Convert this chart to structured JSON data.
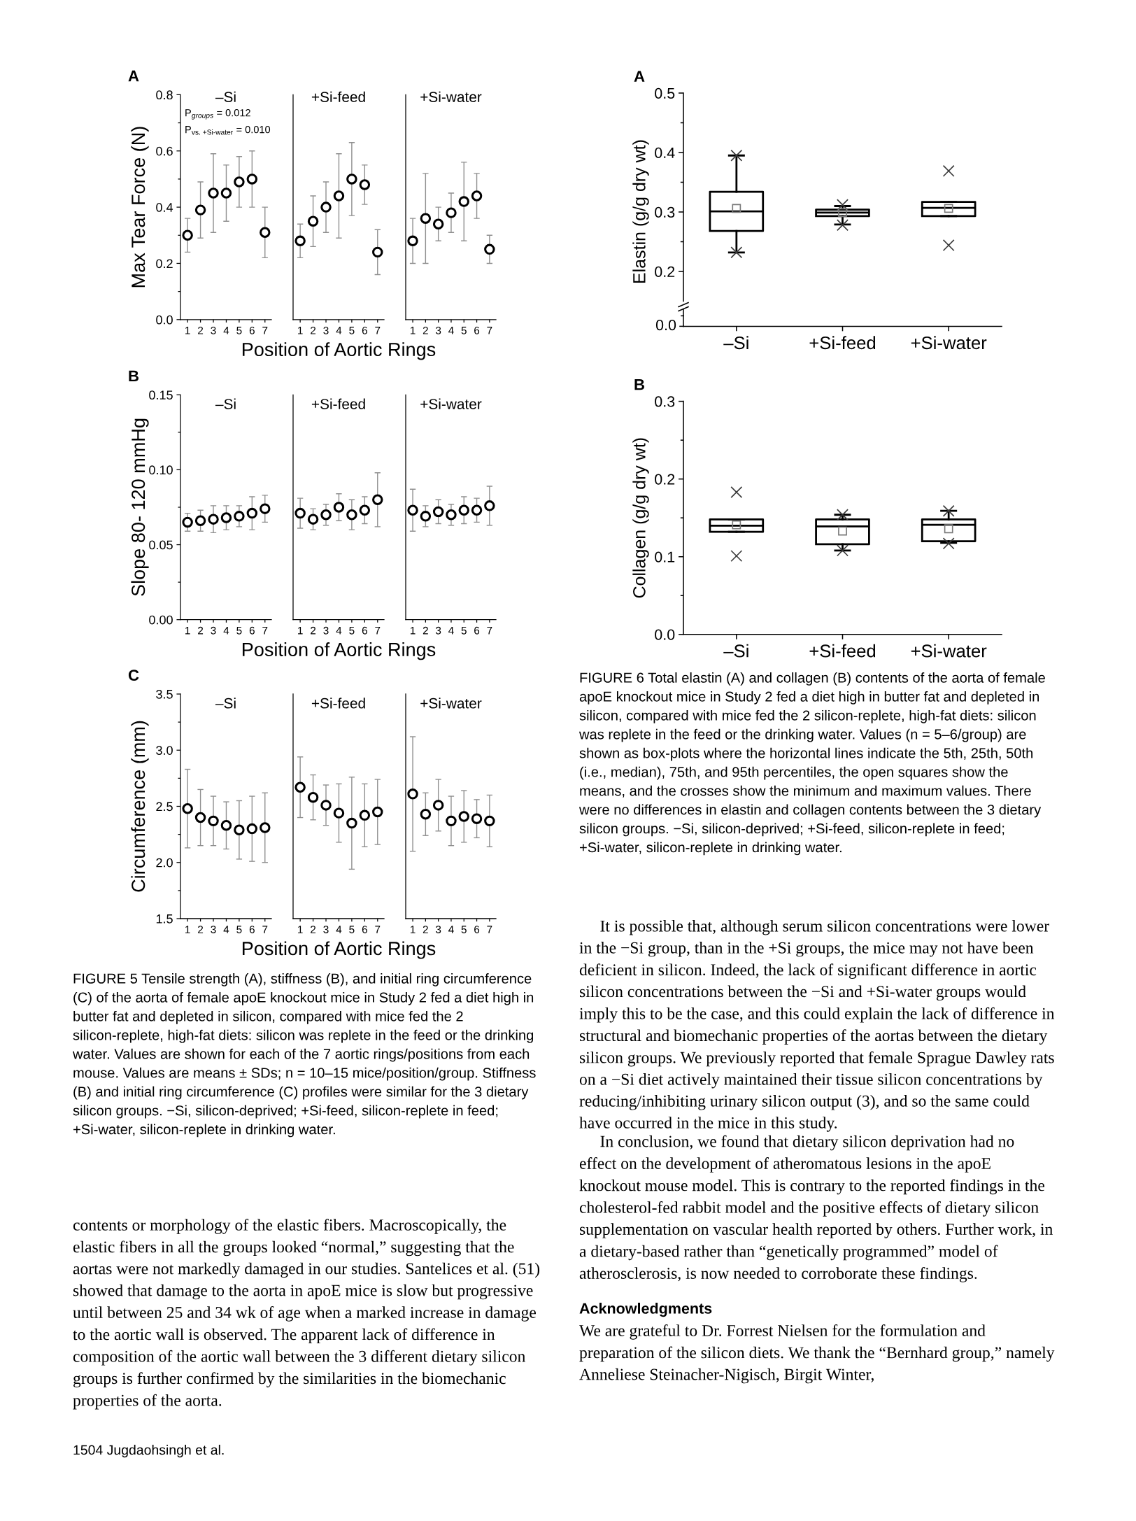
{
  "chart_data": [
    {
      "type": "scatter",
      "title": "–Si",
      "annotations": [
        "A",
        "P$_{groups}$ = 0.012",
        "P$_{vs. +Si-water}$ = 0.010"
      ],
      "ylabel": "Max Tear Force (N)",
      "categories": [
        "1",
        "2",
        "3",
        "4",
        "5",
        "6",
        "7"
      ],
      "series": [
        {
          "color": "#000000",
          "values": [
            0.3,
            0.39,
            0.45,
            0.45,
            0.49,
            0.5,
            0.31
          ],
          "errors": [
            0.06,
            0.1,
            0.14,
            0.1,
            0.09,
            0.1,
            0.09
          ]
        }
      ],
      "ylim": [
        0,
        0.8
      ],
      "yticks": [
        {
          "value": 0,
          "label": "0.0"
        },
        {
          "value": 0.1,
          "label": null
        },
        0.2,
        {
          "value": 0.3,
          "label": null
        },
        0.4,
        {
          "value": 0.5,
          "label": null
        },
        0.6,
        {
          "value": 0.7,
          "label": null
        },
        0.8
      ],
      "marker": "circle"
    },
    {
      "type": "scatter",
      "title": "+Si-feed",
      "xlabel": "Position of Aortic Rings",
      "categories": [
        "1",
        "2",
        "3",
        "4",
        "5",
        "6",
        "7"
      ],
      "series": [
        {
          "color": "#000000",
          "values": [
            0.28,
            0.35,
            0.4,
            0.44,
            0.5,
            0.48,
            0.24
          ],
          "errors": [
            0.06,
            0.09,
            0.09,
            0.15,
            0.13,
            0.07,
            0.08
          ]
        }
      ],
      "ylim": [
        0,
        0.8
      ],
      "tick_labels": "x",
      "marker": "circle"
    },
    {
      "type": "scatter",
      "title": "+Si-water",
      "categories": [
        "1",
        "2",
        "3",
        "4",
        "5",
        "6",
        "7"
      ],
      "series": [
        {
          "color": "#000000",
          "values": [
            0.28,
            0.36,
            0.34,
            0.38,
            0.42,
            0.44,
            0.25
          ],
          "errors": [
            0.08,
            0.16,
            0.06,
            0.07,
            0.14,
            0.08,
            0.05
          ]
        }
      ],
      "ylim": [
        0,
        0.8
      ],
      "tick_labels": "x",
      "marker": "circle"
    },
    {
      "type": "scatter",
      "title": "–Si",
      "annotations": [
        "B"
      ],
      "ylabel": "Slope 80- 120 mmHg",
      "categories": [
        "1",
        "2",
        "3",
        "4",
        "5",
        "6",
        "7"
      ],
      "series": [
        {
          "color": "#000000",
          "values": [
            0.065,
            0.066,
            0.067,
            0.068,
            0.069,
            0.071,
            0.074
          ],
          "errors": [
            0.006,
            0.007,
            0.009,
            0.008,
            0.007,
            0.011,
            0.009
          ]
        }
      ],
      "ylim": [
        0,
        0.15
      ],
      "yticks": [
        {
          "value": 0,
          "label": "0.00"
        },
        {
          "value": 0.025,
          "label": null
        },
        0.05,
        {
          "value": 0.075,
          "label": null
        },
        {
          "value": 0.1,
          "label": "0.10"
        },
        {
          "value": 0.125,
          "label": null
        },
        0.15
      ],
      "marker": "circle"
    },
    {
      "type": "scatter",
      "title": "+Si-feed",
      "xlabel": "Position of Aortic Rings",
      "categories": [
        "1",
        "2",
        "3",
        "4",
        "5",
        "6",
        "7"
      ],
      "series": [
        {
          "color": "#000000",
          "values": [
            0.071,
            0.067,
            0.07,
            0.075,
            0.07,
            0.073,
            0.08
          ],
          "errors": [
            0.01,
            0.007,
            0.007,
            0.009,
            0.01,
            0.009,
            0.018
          ]
        }
      ],
      "ylim": [
        0,
        0.15
      ],
      "tick_labels": "x",
      "marker": "circle"
    },
    {
      "type": "scatter",
      "title": "+Si-water",
      "categories": [
        "1",
        "2",
        "3",
        "4",
        "5",
        "6",
        "7"
      ],
      "series": [
        {
          "color": "#000000",
          "values": [
            0.073,
            0.069,
            0.072,
            0.07,
            0.073,
            0.073,
            0.076
          ],
          "errors": [
            0.014,
            0.007,
            0.008,
            0.007,
            0.009,
            0.008,
            0.013
          ]
        }
      ],
      "ylim": [
        0,
        0.15
      ],
      "tick_labels": "x",
      "marker": "circle"
    },
    {
      "type": "scatter",
      "title": "–Si",
      "annotations": [
        "C"
      ],
      "ylabel": "Circumference (mm)",
      "categories": [
        "1",
        "2",
        "3",
        "4",
        "5",
        "6",
        "7"
      ],
      "series": [
        {
          "color": "#000000",
          "values": [
            2.48,
            2.4,
            2.37,
            2.33,
            2.29,
            2.3,
            2.31
          ],
          "errors": [
            0.35,
            0.25,
            0.22,
            0.21,
            0.26,
            0.29,
            0.31
          ]
        }
      ],
      "ylim": [
        1.5,
        3.5
      ],
      "yticks": [
        1.5,
        {
          "value": 1.75,
          "label": null
        },
        {
          "value": 2,
          "label": "2.0"
        },
        {
          "value": 2.25,
          "label": null
        },
        2.5,
        {
          "value": 2.75,
          "label": null
        },
        {
          "value": 3,
          "label": "3.0"
        },
        {
          "value": 3.25,
          "label": null
        },
        3.5
      ],
      "marker": "circle"
    },
    {
      "type": "scatter",
      "title": "+Si-feed",
      "xlabel": "Position of Aortic Rings",
      "categories": [
        "1",
        "2",
        "3",
        "4",
        "5",
        "6",
        "7"
      ],
      "series": [
        {
          "color": "#000000",
          "values": [
            2.67,
            2.58,
            2.51,
            2.44,
            2.35,
            2.42,
            2.45
          ],
          "errors": [
            0.27,
            0.2,
            0.18,
            0.26,
            0.41,
            0.28,
            0.29
          ]
        }
      ],
      "ylim": [
        1.5,
        3.5
      ],
      "tick_labels": "x",
      "marker": "circle"
    },
    {
      "type": "scatter",
      "title": "+Si-water",
      "categories": [
        "1",
        "2",
        "3",
        "4",
        "5",
        "6",
        "7"
      ],
      "series": [
        {
          "color": "#000000",
          "values": [
            2.61,
            2.43,
            2.51,
            2.37,
            2.41,
            2.39,
            2.37
          ],
          "errors": [
            0.51,
            0.19,
            0.23,
            0.22,
            0.23,
            0.17,
            0.23
          ]
        }
      ],
      "ylim": [
        1.5,
        3.5
      ],
      "tick_labels": "x",
      "marker": "circle"
    },
    {
      "type": "box",
      "annotations": [
        "A",
        "0.0"
      ],
      "ylabel": "Elastin (g/g dry wt)",
      "categories": [
        "–Si",
        "+Si-feed",
        "+Si-water"
      ],
      "series": [
        {
          "color": "#000000",
          "boxes": [
            {
              "low": 0.232,
              "q1": 0.268,
              "median": 0.301,
              "q3": 0.334,
              "high": 0.395,
              "mean": 0.306,
              "outliers": [
                0.395,
                0.232
              ]
            },
            {
              "low": 0.279,
              "q1": 0.293,
              "median": 0.299,
              "q3": 0.304,
              "high": 0.31,
              "mean": 0.299,
              "outliers": [
                0.312,
                0.278
              ]
            },
            {
              "low": 0.293,
              "q1": 0.293,
              "median": 0.307,
              "q3": 0.317,
              "high": 0.317,
              "mean": 0.306,
              "outliers": [
                0.369,
                0.244
              ]
            }
          ]
        }
      ],
      "ylim": [
        0.15,
        0.5
      ],
      "yticks": [
        0.2,
        {
          "value": 0.25,
          "label": null
        },
        0.3,
        {
          "value": 0.35,
          "label": null
        },
        0.4,
        {
          "value": 0.45,
          "label": null
        },
        0.5
      ]
    },
    {
      "type": "box",
      "annotations": [
        "B"
      ],
      "ylabel": "Collagen (g/g dry wt)",
      "categories": [
        "–Si",
        "+Si-feed",
        "+Si-water"
      ],
      "series": [
        {
          "color": "#000000",
          "boxes": [
            {
              "low": 0.132,
              "q1": 0.132,
              "median": 0.14,
              "q3": 0.148,
              "high": 0.148,
              "mean": 0.141,
              "outliers": [
                0.183,
                0.101
              ]
            },
            {
              "low": 0.108,
              "q1": 0.116,
              "median": 0.139,
              "q3": 0.148,
              "high": 0.154,
              "mean": 0.133,
              "outliers": [
                0.154,
                0.108
              ]
            },
            {
              "low": 0.118,
              "q1": 0.12,
              "median": 0.141,
              "q3": 0.148,
              "high": 0.159,
              "mean": 0.136,
              "outliers": [
                0.159,
                0.117
              ]
            }
          ]
        }
      ],
      "ylim": [
        0,
        0.3
      ],
      "yticks": [
        {
          "value": 0,
          "label": "0.0"
        },
        {
          "value": 0.05,
          "label": null
        },
        0.1,
        {
          "value": 0.15,
          "label": null
        },
        0.2,
        {
          "value": 0.25,
          "label": null
        },
        0.3
      ]
    },
    {
      "type": "other",
      "annotations": [
        "FIGURE 5 Tensile strength (A), stiffness (B), and initial ring circumference (C) of the aorta of female apoE knockout mice in Study 2 fed a diet high in butter fat and depleted in silicon, compared with mice fed the 2 silicon-replete, high-fat diets: silicon was replete in the feed or the drinking water. Values are shown for each of the 7 aortic rings/positions from each mouse. Values are means ± SDs; n = 10–15 mice/position/group. Stiffness (B) and initial ring circumference (C) profiles were similar for the 3 dietary silicon groups. −Si, silicon-deprived; +Si-feed, silicon-replete in feed; +Si-water, silicon-replete in drinking water.",
        "contents or morphology of the elastic fibers. Macroscopically, the elastic fibers in all the groups looked “normal,” suggesting that the aortas were not markedly damaged in our studies. Santelices et al. (51) showed that damage to the aorta in apoE mice is slow but progressive until between 25 and 34 wk of age when a marked increase in damage to the aortic wall is observed. The apparent lack of difference in composition of the aortic wall between the 3 different dietary silicon groups is further confirmed by the similarities in the biomechanic properties of the aorta.",
        "1504 Jugdaohsingh et al.",
        "FIGURE 6 Total elastin (A) and collagen (B) contents of the aorta of female apoE knockout mice in Study 2 fed a diet high in butter fat and depleted in silicon, compared with mice fed the 2 silicon-replete, high-fat diets: silicon was replete in the feed or the drinking water. Values (n = 5–6/group) are shown as box-plots where the horizontal lines indicate the 5th, 25th, 50th (i.e., median), 75th, and 95th percentiles, the open squares show the means, and the crosses show the minimum and maximum values. There were no differences in elastin and collagen contents between the 3 dietary silicon groups. −Si, silicon-deprived; +Si-feed, silicon-replete in feed; +Si-water, silicon-replete in drinking water.",
        "It is possible that, although serum silicon concentrations were lower in the −Si group, than in the +Si groups, the mice may not have been deficient in silicon. Indeed, the lack of significant difference in aortic silicon concentrations between the −Si and +Si-water groups would imply this to be the case, and this could explain the lack of difference in structural and biomechanic properties of the aortas between the dietary silicon groups. We previously reported that female Sprague Dawley rats on a −Si diet actively maintained their tissue silicon concentrations by reducing/inhibiting urinary silicon output (3), and so the same could have occurred in the mice in this study.",
        "In conclusion, we found that dietary silicon deprivation had no effect on the development of atheromatous lesions in the apoE knockout mouse model. This is contrary to the reported findings in the cholesterol-fed rabbit model and the positive effects of dietary silicon supplementation on vascular health reported by others. Further work, in a dietary-based rather than “genetically programmed” model of atherosclerosis, is now needed to corroborate these findings.",
        "Acknowledgments",
        "We are grateful to Dr. Forrest Nielsen for the formulation and preparation of the silicon diets. We thank the “Bernhard group,” namely Anneliese Steinacher-Nigisch, Birgit Winter,"
      ]
    }
  ]
}
